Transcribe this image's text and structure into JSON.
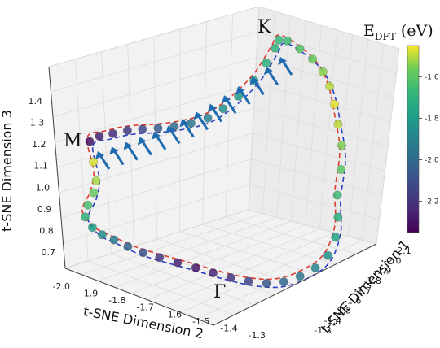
{
  "chart_data": {
    "type": "scatter",
    "projection": "3d",
    "x_label": "t-SNE Dimension 1",
    "y_label": "t-SNE Dimension 2",
    "z_label": "t-SNE Dimension 3",
    "x_ticks": [
      "-1.3",
      "-1.4",
      "-1.5",
      "-1.6",
      "-1.7",
      "-1.8",
      "-1.9",
      "-2.0",
      "-2.1"
    ],
    "y_ticks": [
      "-2.0",
      "-1.9",
      "-1.8",
      "-1.7",
      "-1.6",
      "-1.5",
      "-1.4",
      "-1.3"
    ],
    "z_ticks": [
      "0.7",
      "0.8",
      "0.9",
      "1.0",
      "1.1",
      "1.2",
      "1.3",
      "1.4"
    ],
    "colorbar": {
      "title": "E",
      "subscript": "DFT",
      "unit": " (eV)",
      "ticks": [
        "-1.6",
        "-1.8",
        "-2.0",
        "-2.2"
      ],
      "tick_values": [
        -1.6,
        -1.8,
        -2.0,
        -2.2
      ],
      "range": [
        -2.35,
        -1.45
      ],
      "colormap": "viridis"
    },
    "high_symmetry_points": [
      "K",
      "M",
      "Γ"
    ],
    "series": [
      {
        "marker": "circle",
        "path_energies": [
          -2.3,
          -2.26,
          -2.22,
          -2.18,
          -2.12,
          -2.06,
          -2.0,
          -1.95,
          -1.9,
          -1.85,
          -1.8,
          -1.75,
          -1.72,
          -1.7,
          -1.68,
          -1.66,
          -1.62,
          -1.58,
          -1.54,
          -1.5,
          -1.47,
          -1.5,
          -1.55,
          -1.6,
          -1.66,
          -1.72,
          -1.78,
          -1.84,
          -1.9,
          -1.96,
          -2.02,
          -2.08,
          -2.14,
          -2.2,
          -2.25,
          -2.28,
          -2.25,
          -2.18,
          -2.1,
          -2.02,
          -1.94,
          -1.86,
          -1.78,
          -1.7,
          -1.64,
          -1.58,
          -1.52,
          -1.48
        ]
      }
    ],
    "paths": [
      {
        "style": "dashed",
        "color": "#e0392f"
      },
      {
        "style": "dashed",
        "color": "#2c3ec4"
      }
    ],
    "annotation": {
      "type": "arrows",
      "color": "#1f6bb0",
      "count": 14
    }
  }
}
